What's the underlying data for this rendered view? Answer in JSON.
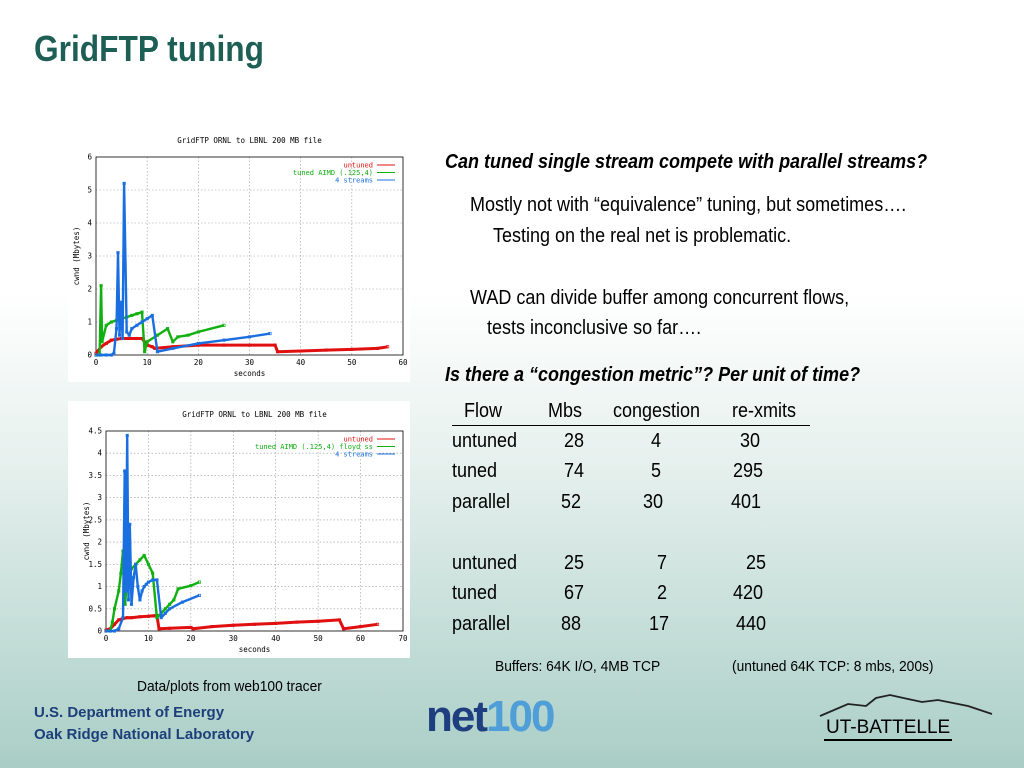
{
  "slide": {
    "title": "GridFTP tuning",
    "question1": "Can tuned single stream compete with parallel streams?",
    "point1_line1": "Mostly not with “equivalence” tuning, but sometimes….",
    "point1_line2": "Testing on the real net is problematic.",
    "point2_line1": "WAD can divide buffer among concurrent flows,",
    "point2_line2": "tests inconclusive so far….",
    "question2": "Is there a “congestion metric”?   Per unit of time?",
    "table": {
      "headers": [
        "Flow",
        "Mbs",
        "congestion",
        "re-xmits"
      ],
      "rows": [
        [
          "untuned",
          "28",
          "4",
          "30"
        ],
        [
          "tuned",
          "74",
          "5",
          "295"
        ],
        [
          "parallel",
          "52",
          "30",
          "401"
        ],
        [
          "untuned",
          "25",
          "7",
          "25"
        ],
        [
          "tuned",
          "67",
          "2",
          "420"
        ],
        [
          "parallel",
          "88",
          "17",
          "440"
        ]
      ]
    },
    "buffers_note": "Buffers: 64K I/O,  4MB TCP",
    "untuned_note": "(untuned 64K TCP: 8 mbs, 200s)",
    "caption": "Data/plots from web100 tracer",
    "footer_line1": "U.S. Department of Energy",
    "footer_line2": "Oak Ridge National Laboratory",
    "logo_net": "net",
    "logo_100": "100",
    "logo_utb": "UT-BATTELLE"
  },
  "colors": {
    "title": "#1d5f55",
    "untuned": "#e01010",
    "tuned": "#10b010",
    "streams": "#1a6fe0"
  },
  "chart_data": [
    {
      "type": "line",
      "title": "GridFTP ORNL to LBNL 200 MB file",
      "xlabel": "seconds",
      "ylabel": "cwnd (Mbytes)",
      "xlim": [
        0,
        60
      ],
      "ylim": [
        0,
        6
      ],
      "xticks": [
        "0",
        "10",
        "20",
        "30",
        "40",
        "50",
        "60"
      ],
      "yticks": [
        "0",
        "1",
        "2",
        "3",
        "4",
        "5",
        "6"
      ],
      "grid": true,
      "legend": "top-right",
      "series": [
        {
          "name": "untuned",
          "color": "#e01010",
          "x": [
            0,
            1,
            2,
            3,
            4,
            5,
            8,
            9,
            10,
            11,
            11.5,
            15,
            20,
            25,
            30,
            35,
            35.5,
            40,
            45,
            50,
            55,
            57
          ],
          "y": [
            0.05,
            0.25,
            0.35,
            0.45,
            0.48,
            0.5,
            0.5,
            0.5,
            0.3,
            0.25,
            0.2,
            0.25,
            0.3,
            0.3,
            0.3,
            0.3,
            0.1,
            0.12,
            0.15,
            0.17,
            0.2,
            0.25
          ]
        },
        {
          "name": "tuned AIMD (.125,4)",
          "color": "#10b010",
          "x": [
            0,
            0.5,
            0.7,
            1,
            1.2,
            2,
            3,
            4,
            5,
            6,
            7,
            8,
            9,
            9.5,
            10,
            12,
            14,
            15,
            16,
            18,
            20,
            25
          ],
          "y": [
            0,
            0,
            0,
            2.1,
            0.4,
            0.9,
            1.0,
            1.05,
            1.1,
            1.15,
            1.2,
            1.25,
            1.3,
            0.1,
            0.4,
            0.6,
            0.8,
            0.4,
            0.55,
            0.6,
            0.7,
            0.9
          ]
        },
        {
          "name": "4 streams",
          "color": "#1a6fe0",
          "x": [
            0,
            1,
            2,
            3,
            3.5,
            4,
            4.3,
            4.6,
            4.9,
            5.2,
            5.5,
            6,
            6.5,
            7,
            8,
            9,
            10,
            11,
            12,
            15,
            20,
            25,
            30,
            34
          ],
          "y": [
            0,
            0,
            0,
            0,
            0.05,
            0.8,
            3.1,
            0.6,
            1.6,
            0.5,
            5.2,
            0.7,
            0.6,
            0.8,
            0.9,
            1.0,
            1.1,
            1.2,
            0.1,
            0.2,
            0.35,
            0.45,
            0.55,
            0.65
          ]
        }
      ]
    },
    {
      "type": "line",
      "title": "GridFTP ORNL to LBNL 200 MB file",
      "xlabel": "seconds",
      "ylabel": "cwnd (Mbytes)",
      "xlim": [
        0,
        70
      ],
      "ylim": [
        0,
        4.5
      ],
      "xticks": [
        "0",
        "10",
        "20",
        "30",
        "40",
        "50",
        "60",
        "70"
      ],
      "yticks": [
        "0",
        "0.5",
        "1",
        "1.5",
        "2",
        "2.5",
        "3",
        "3.5",
        "4",
        "4.5"
      ],
      "grid": true,
      "legend": "top-right",
      "series": [
        {
          "name": "untuned",
          "color": "#e01010",
          "x": [
            0,
            1,
            2,
            3,
            4,
            5,
            6,
            8,
            10,
            12,
            12.5,
            15,
            20,
            20.5,
            25,
            30,
            35,
            40,
            45,
            50,
            55,
            56,
            60,
            64
          ],
          "y": [
            0.02,
            0.05,
            0.15,
            0.25,
            0.28,
            0.3,
            0.3,
            0.32,
            0.33,
            0.35,
            0.05,
            0.06,
            0.08,
            0.05,
            0.1,
            0.13,
            0.15,
            0.17,
            0.2,
            0.22,
            0.25,
            0.05,
            0.1,
            0.15
          ]
        },
        {
          "name": "tuned AIMD (.125,4) floyd ss",
          "color": "#10b010",
          "x": [
            0,
            1,
            1.5,
            2,
            3,
            3.5,
            4,
            4.5,
            5,
            6,
            7,
            8,
            9,
            10,
            11,
            12,
            13,
            14,
            15,
            16,
            17,
            20,
            22
          ],
          "y": [
            0,
            0,
            0.2,
            0.5,
            0.9,
            1.3,
            1.8,
            0.6,
            1.2,
            1.4,
            1.5,
            1.6,
            1.7,
            1.5,
            1.3,
            0.3,
            0.4,
            0.5,
            0.6,
            0.7,
            0.95,
            1.02,
            1.1
          ]
        },
        {
          "name": "4 streams",
          "color": "#1a6fe0",
          "x": [
            0,
            1,
            2,
            3,
            4,
            4.4,
            4.7,
            5,
            5.3,
            5.6,
            6,
            6.5,
            7,
            7.5,
            8,
            8.5,
            9,
            9.5,
            10,
            11,
            12,
            13,
            14,
            15,
            18,
            22
          ],
          "y": [
            0,
            0,
            0,
            0.05,
            0.3,
            3.6,
            0.9,
            4.4,
            0.7,
            2.4,
            0.6,
            1.2,
            1.5,
            1.0,
            0.7,
            0.9,
            1.0,
            1.05,
            1.1,
            1.15,
            1.15,
            0.3,
            0.4,
            0.5,
            0.65,
            0.8
          ]
        }
      ]
    }
  ]
}
